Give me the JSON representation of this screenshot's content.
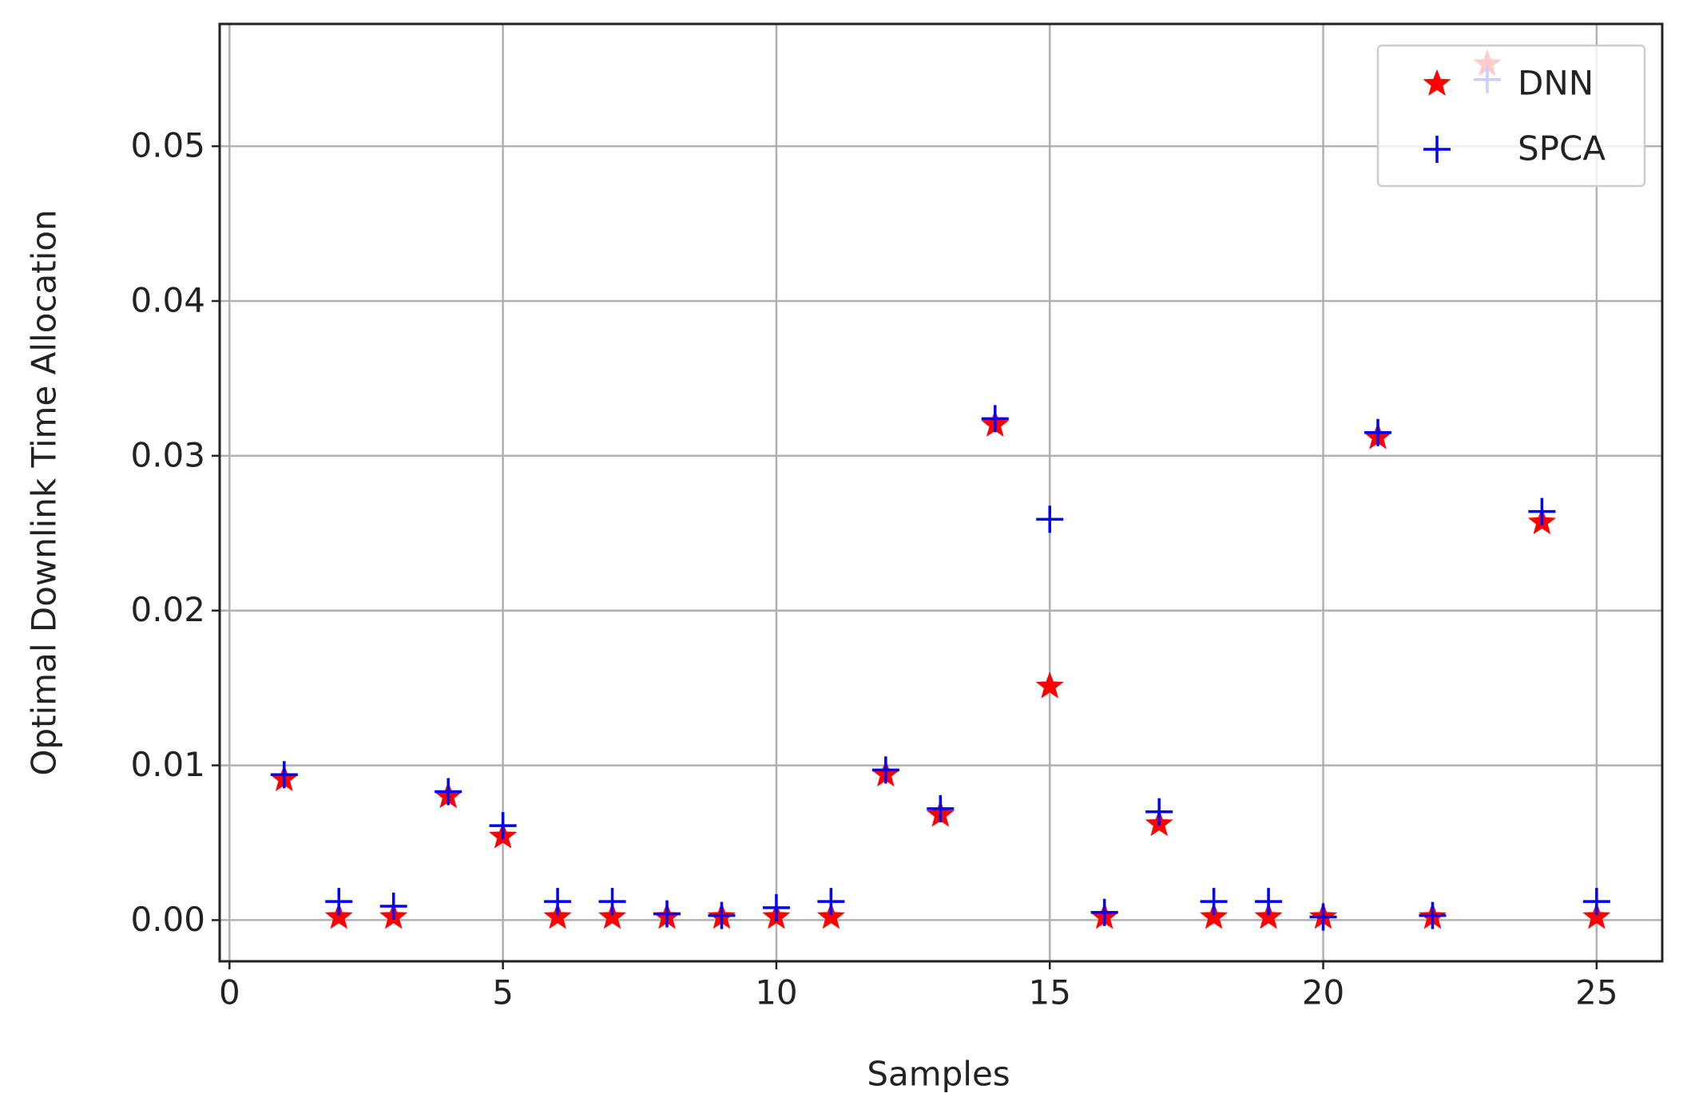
{
  "chart_data": {
    "type": "scatter",
    "xlabel": "Samples",
    "ylabel": "Optimal Downlink Time Allocation",
    "xlim": [
      -0.18,
      26.2
    ],
    "ylim": [
      -0.00266,
      0.0579
    ],
    "xticks": [
      0,
      5,
      10,
      15,
      20,
      25
    ],
    "yticks": [
      {
        "value": 0,
        "label": "0.00"
      },
      0.01,
      0.02,
      0.03,
      0.04,
      0.05
    ],
    "grid": true,
    "legend": "upper right",
    "x": [
      1,
      2,
      3,
      4,
      5,
      6,
      7,
      8,
      9,
      10,
      11,
      12,
      13,
      14,
      15,
      16,
      17,
      18,
      19,
      20,
      21,
      22,
      23,
      24,
      25
    ],
    "series": [
      {
        "name": "DNN",
        "color": "#ff0000",
        "marker": "star",
        "values": [
          0.0091,
          0.0002,
          0.0002,
          0.008,
          0.0054,
          0.0002,
          0.0002,
          0.0002,
          0.0002,
          0.0002,
          0.0002,
          0.0094,
          0.0068,
          0.032,
          0.0151,
          0.0002,
          0.0062,
          0.0002,
          0.0002,
          0.0002,
          0.0312,
          0.0002,
          0.0553,
          0.0257,
          0.0002
        ]
      },
      {
        "name": "SPCA",
        "color": "#0000ff",
        "marker": "plus",
        "values": [
          0.0094,
          0.0012,
          0.0009,
          0.0083,
          0.0061,
          0.0012,
          0.0012,
          0.0004,
          0.0003,
          0.0008,
          0.0012,
          0.0097,
          0.0072,
          0.0324,
          0.0259,
          0.0005,
          0.007,
          0.0012,
          0.0012,
          0.0002,
          0.0315,
          0.0003,
          0.0543,
          0.0264,
          0.0012
        ]
      }
    ]
  }
}
